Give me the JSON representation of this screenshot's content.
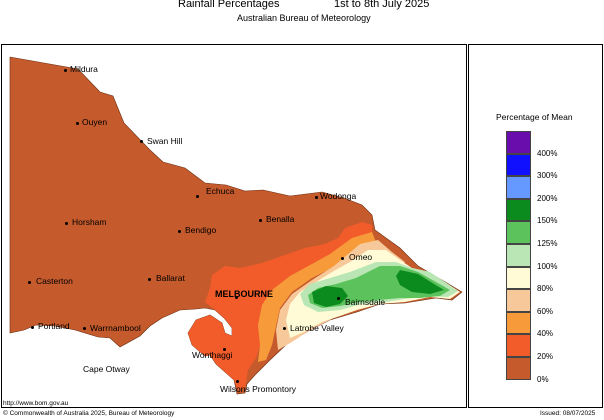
{
  "header": {
    "title": "Rainfall Percentages",
    "period": "1st to 8th July 2025",
    "agency": "Australian Bureau of Meteorology"
  },
  "map": {
    "region": "Victoria",
    "places": [
      {
        "name": "Mildura"
      },
      {
        "name": "Ouyen"
      },
      {
        "name": "Swan Hill"
      },
      {
        "name": "Echuca"
      },
      {
        "name": "Wodonga"
      },
      {
        "name": "Horsham"
      },
      {
        "name": "Bendigo"
      },
      {
        "name": "Benalla"
      },
      {
        "name": "Omeo"
      },
      {
        "name": "Ballarat"
      },
      {
        "name": "Casterton"
      },
      {
        "name": "MELBOURNE"
      },
      {
        "name": "Bairnsdale"
      },
      {
        "name": "Portland"
      },
      {
        "name": "Warrnambool"
      },
      {
        "name": "Latrobe Valley"
      },
      {
        "name": "Wonthaggi"
      },
      {
        "name": "Cape Otway"
      },
      {
        "name": "Wilsons Promontory"
      }
    ]
  },
  "legend": {
    "title": "Percentage of Mean",
    "items": [
      {
        "label": "",
        "color": "#6a0dad"
      },
      {
        "label": "400%",
        "color": "#1010ff"
      },
      {
        "label": "300%",
        "color": "#6699ff"
      },
      {
        "label": "200%",
        "color": "#0b8a1e"
      },
      {
        "label": "150%",
        "color": "#5cc25c"
      },
      {
        "label": "125%",
        "color": "#b9e6b4"
      },
      {
        "label": "100%",
        "color": "#fffbd6"
      },
      {
        "label": "80%",
        "color": "#f7c99a"
      },
      {
        "label": "60%",
        "color": "#f79b3a"
      },
      {
        "label": "40%",
        "color": "#f25c2b"
      },
      {
        "label": "20%",
        "color": "#c55a2c"
      },
      {
        "label": "0%",
        "color": ""
      }
    ]
  },
  "footer": {
    "website": "http://www.bom.gov.au",
    "copyright": "© Commonwealth of Australia 2025, Bureau of Meteorology",
    "issued": "Issued: 08/07/2025"
  }
}
